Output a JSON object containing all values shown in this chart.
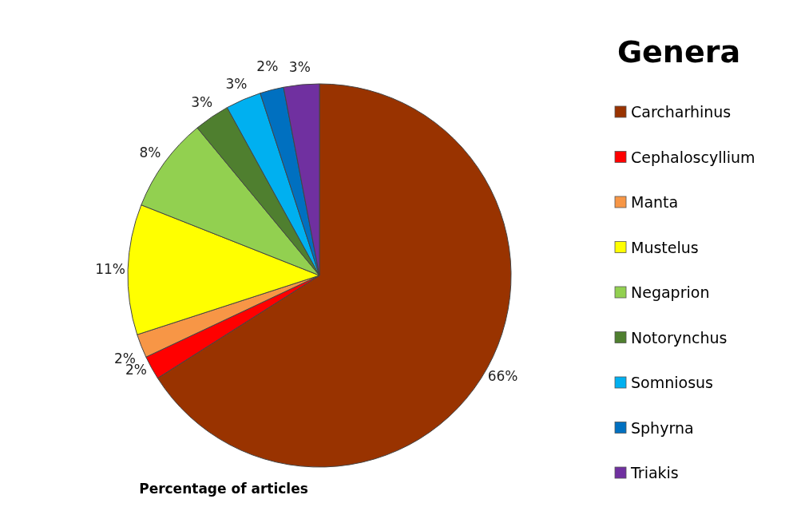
{
  "chart_data": {
    "type": "pie",
    "xlabel": "Percentage of articles",
    "legend_title": "Genera",
    "legend": "right",
    "categories": [
      "Carcharhinus",
      "Cephaloscyllium",
      "Manta",
      "Mustelus",
      "Negaprion",
      "Notorynchus",
      "Somniosus",
      "Sphyrna",
      "Triakis"
    ],
    "values": [
      66,
      2,
      2,
      11,
      8,
      3,
      3,
      2,
      3
    ],
    "value_labels": [
      "66%",
      "2%",
      "2%",
      "11%",
      "8%",
      "3%",
      "3%",
      "2%",
      "3%"
    ],
    "colors": [
      "#993300",
      "#ff0000",
      "#f79646",
      "#ffff00",
      "#92d050",
      "#4f7f2f",
      "#00b0f0",
      "#0070c0",
      "#7030a0"
    ]
  }
}
